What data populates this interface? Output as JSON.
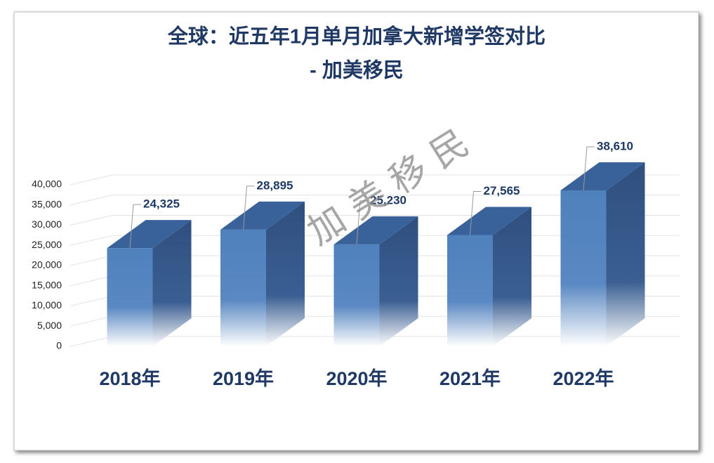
{
  "chart_data": {
    "type": "bar3d",
    "title": "全球：近五年1月单月加拿大新增学签对比",
    "subtitle": "- 加美移民",
    "watermark": "加 美 移 民",
    "categories": [
      "2018年",
      "2019年",
      "2020年",
      "2021年",
      "2022年"
    ],
    "values": [
      24325,
      28895,
      25230,
      27565,
      38610
    ],
    "value_labels": [
      "24,325",
      "28,895",
      "25,230",
      "27,565",
      "38,610"
    ],
    "color": "#4f81bd",
    "ylim": [
      0,
      40000
    ],
    "yticks": [
      0,
      {
        "value": 5000,
        "label": "5,000"
      },
      {
        "value": 10000,
        "label": "10,000"
      },
      {
        "value": 15000,
        "label": "15,000"
      },
      {
        "value": 20000,
        "label": "20,000"
      },
      {
        "value": 25000,
        "label": "25,000"
      },
      {
        "value": 30000,
        "label": "30,000"
      },
      {
        "value": 35000,
        "label": "35,000"
      },
      {
        "value": 40000,
        "label": "40,000"
      }
    ],
    "grid": true
  }
}
